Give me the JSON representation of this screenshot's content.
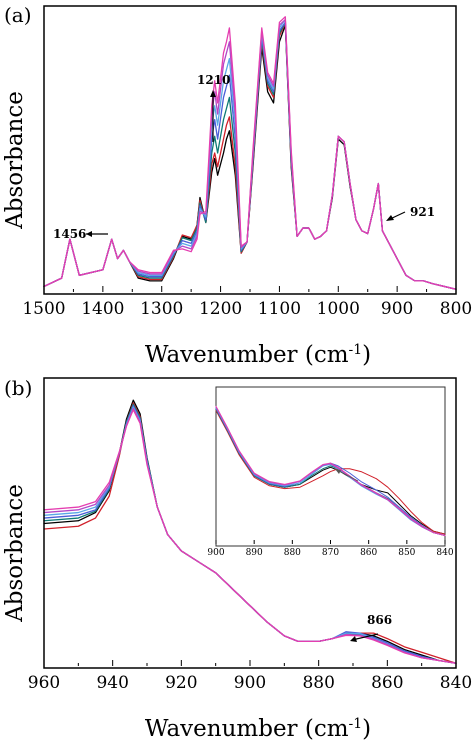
{
  "chart_data": [
    {
      "panel_label": "(a)",
      "type": "line",
      "xlabel": "Wavenumber (cm",
      "xlabel_sup": "-1",
      "xlabel_close": ")",
      "ylabel": "Absorbance",
      "xlim": [
        1500,
        800
      ],
      "x_reversed": true,
      "y_ticks_shown": false,
      "x_ticks": [
        "1500",
        "1400",
        "1300",
        "1200",
        "1100",
        "1000",
        "900",
        "800"
      ],
      "x_tick_values": [
        1500,
        1400,
        1300,
        1200,
        1100,
        1000,
        900,
        800
      ],
      "series_colors": [
        "#000000",
        "#d0202a",
        "#0d7a74",
        "#4a5ed8",
        "#59a7e6",
        "#b248c8",
        "#e43eb0"
      ],
      "x": [
        1500,
        1470,
        1456,
        1440,
        1400,
        1385,
        1375,
        1365,
        1355,
        1340,
        1320,
        1300,
        1280,
        1265,
        1250,
        1240,
        1235,
        1225,
        1215,
        1210,
        1205,
        1195,
        1190,
        1185,
        1175,
        1165,
        1155,
        1145,
        1130,
        1120,
        1110,
        1100,
        1090,
        1080,
        1070,
        1060,
        1050,
        1040,
        1030,
        1020,
        1010,
        1000,
        990,
        980,
        970,
        960,
        950,
        940,
        932,
        925,
        915,
        900,
        885,
        870,
        855,
        840,
        820,
        800
      ],
      "series_shapes": [
        [
          0.02,
          0.05,
          0.19,
          0.06,
          0.08,
          0.19,
          0.12,
          0.15,
          0.11,
          0.05,
          0.04,
          0.04,
          0.12,
          0.2,
          0.19,
          0.24,
          0.34,
          0.25,
          0.43,
          0.48,
          0.42,
          0.5,
          0.55,
          0.58,
          0.42,
          0.14,
          0.18,
          0.45,
          0.88,
          0.72,
          0.68,
          0.9,
          0.96,
          0.45,
          0.2,
          0.23,
          0.23,
          0.19,
          0.2,
          0.22,
          0.34,
          0.55,
          0.53,
          0.38,
          0.26,
          0.22,
          0.21,
          0.3,
          0.39,
          0.22,
          0.18,
          0.12,
          0.06,
          0.04,
          0.04,
          0.03,
          0.02,
          0.01
        ],
        [
          0.02,
          0.05,
          0.19,
          0.06,
          0.08,
          0.19,
          0.12,
          0.15,
          0.11,
          0.055,
          0.045,
          0.045,
          0.125,
          0.205,
          0.195,
          0.24,
          0.33,
          0.25,
          0.46,
          0.5,
          0.45,
          0.55,
          0.6,
          0.63,
          0.45,
          0.14,
          0.18,
          0.46,
          0.9,
          0.74,
          0.7,
          0.92,
          0.97,
          0.46,
          0.2,
          0.23,
          0.23,
          0.19,
          0.2,
          0.22,
          0.35,
          0.56,
          0.54,
          0.39,
          0.26,
          0.22,
          0.21,
          0.3,
          0.39,
          0.22,
          0.18,
          0.12,
          0.06,
          0.04,
          0.04,
          0.03,
          0.02,
          0.01
        ],
        [
          0.02,
          0.05,
          0.19,
          0.06,
          0.08,
          0.19,
          0.12,
          0.15,
          0.11,
          0.06,
          0.05,
          0.05,
          0.13,
          0.195,
          0.185,
          0.23,
          0.32,
          0.25,
          0.5,
          0.56,
          0.5,
          0.62,
          0.66,
          0.7,
          0.5,
          0.145,
          0.18,
          0.47,
          0.91,
          0.75,
          0.71,
          0.93,
          0.97,
          0.47,
          0.2,
          0.23,
          0.23,
          0.19,
          0.2,
          0.22,
          0.35,
          0.56,
          0.54,
          0.39,
          0.26,
          0.22,
          0.21,
          0.3,
          0.39,
          0.22,
          0.18,
          0.12,
          0.06,
          0.04,
          0.04,
          0.03,
          0.02,
          0.01
        ],
        [
          0.02,
          0.05,
          0.19,
          0.06,
          0.08,
          0.19,
          0.12,
          0.15,
          0.11,
          0.065,
          0.055,
          0.055,
          0.135,
          0.185,
          0.175,
          0.22,
          0.31,
          0.26,
          0.55,
          0.62,
          0.55,
          0.7,
          0.74,
          0.78,
          0.55,
          0.15,
          0.18,
          0.48,
          0.92,
          0.76,
          0.72,
          0.94,
          0.97,
          0.48,
          0.2,
          0.23,
          0.23,
          0.19,
          0.2,
          0.22,
          0.35,
          0.56,
          0.54,
          0.39,
          0.26,
          0.22,
          0.21,
          0.3,
          0.39,
          0.22,
          0.18,
          0.12,
          0.06,
          0.04,
          0.04,
          0.03,
          0.02,
          0.01
        ],
        [
          0.02,
          0.05,
          0.19,
          0.06,
          0.08,
          0.19,
          0.12,
          0.15,
          0.11,
          0.07,
          0.06,
          0.06,
          0.14,
          0.175,
          0.165,
          0.21,
          0.3,
          0.27,
          0.6,
          0.67,
          0.6,
          0.76,
          0.8,
          0.84,
          0.6,
          0.155,
          0.18,
          0.49,
          0.93,
          0.77,
          0.73,
          0.95,
          0.98,
          0.49,
          0.2,
          0.23,
          0.23,
          0.19,
          0.2,
          0.22,
          0.35,
          0.56,
          0.54,
          0.39,
          0.26,
          0.22,
          0.21,
          0.3,
          0.39,
          0.22,
          0.18,
          0.12,
          0.06,
          0.04,
          0.04,
          0.03,
          0.02,
          0.01
        ],
        [
          0.02,
          0.05,
          0.19,
          0.06,
          0.08,
          0.19,
          0.12,
          0.15,
          0.11,
          0.075,
          0.065,
          0.065,
          0.145,
          0.165,
          0.155,
          0.2,
          0.29,
          0.28,
          0.64,
          0.72,
          0.64,
          0.82,
          0.86,
          0.9,
          0.64,
          0.16,
          0.18,
          0.5,
          0.94,
          0.78,
          0.74,
          0.96,
          0.98,
          0.5,
          0.2,
          0.23,
          0.23,
          0.19,
          0.2,
          0.22,
          0.35,
          0.56,
          0.54,
          0.39,
          0.26,
          0.22,
          0.21,
          0.3,
          0.39,
          0.22,
          0.18,
          0.12,
          0.06,
          0.04,
          0.04,
          0.03,
          0.02,
          0.01
        ],
        [
          0.02,
          0.05,
          0.19,
          0.06,
          0.08,
          0.19,
          0.12,
          0.15,
          0.11,
          0.08,
          0.07,
          0.07,
          0.15,
          0.155,
          0.145,
          0.19,
          0.28,
          0.29,
          0.67,
          0.76,
          0.68,
          0.86,
          0.9,
          0.95,
          0.68,
          0.165,
          0.18,
          0.51,
          0.95,
          0.79,
          0.75,
          0.97,
          0.99,
          0.51,
          0.2,
          0.23,
          0.23,
          0.19,
          0.2,
          0.22,
          0.35,
          0.56,
          0.54,
          0.39,
          0.26,
          0.22,
          0.21,
          0.3,
          0.39,
          0.22,
          0.18,
          0.12,
          0.06,
          0.04,
          0.04,
          0.03,
          0.02,
          0.01
        ]
      ],
      "annotations": [
        {
          "text": "1456",
          "direction": "left"
        },
        {
          "text": "1210",
          "direction": "up"
        },
        {
          "text": "921",
          "direction": "left"
        }
      ]
    },
    {
      "panel_label": "(b)",
      "type": "line",
      "xlabel": "Wavenumber (cm",
      "xlabel_sup": "-1",
      "xlabel_close": ")",
      "ylabel": "Absorbance",
      "xlim": [
        960,
        840
      ],
      "x_reversed": true,
      "y_ticks_shown": false,
      "x_ticks": [
        "960",
        "940",
        "920",
        "900",
        "880",
        "860",
        "840"
      ],
      "x_tick_values": [
        960,
        940,
        920,
        900,
        880,
        860,
        840
      ],
      "series_colors": [
        "#000000",
        "#d0202a",
        "#0d7a74",
        "#4a5ed8",
        "#59a7e6",
        "#b248c8",
        "#e43eb0"
      ],
      "x": [
        960,
        950,
        945,
        941,
        938,
        936,
        934,
        932,
        930,
        927,
        924,
        920,
        915,
        910,
        905,
        900,
        895,
        890,
        886,
        880,
        876,
        872,
        868,
        864,
        860,
        855,
        850,
        845,
        840
      ],
      "series_shapes": [
        [
          0.52,
          0.53,
          0.56,
          0.64,
          0.78,
          0.9,
          0.97,
          0.92,
          0.76,
          0.58,
          0.48,
          0.42,
          0.38,
          0.34,
          0.28,
          0.22,
          0.16,
          0.11,
          0.09,
          0.09,
          0.1,
          0.12,
          0.12,
          0.11,
          0.09,
          0.06,
          0.04,
          0.02,
          0.01
        ],
        [
          0.5,
          0.51,
          0.54,
          0.62,
          0.77,
          0.89,
          0.96,
          0.91,
          0.75,
          0.58,
          0.48,
          0.42,
          0.38,
          0.34,
          0.28,
          0.22,
          0.16,
          0.11,
          0.09,
          0.09,
          0.1,
          0.115,
          0.12,
          0.12,
          0.1,
          0.07,
          0.05,
          0.03,
          0.01
        ],
        [
          0.53,
          0.54,
          0.565,
          0.645,
          0.78,
          0.89,
          0.955,
          0.905,
          0.755,
          0.58,
          0.48,
          0.42,
          0.38,
          0.34,
          0.28,
          0.22,
          0.16,
          0.11,
          0.09,
          0.09,
          0.1,
          0.12,
          0.115,
          0.1,
          0.08,
          0.055,
          0.035,
          0.02,
          0.01
        ],
        [
          0.54,
          0.55,
          0.57,
          0.65,
          0.78,
          0.885,
          0.95,
          0.9,
          0.75,
          0.58,
          0.48,
          0.42,
          0.38,
          0.34,
          0.28,
          0.22,
          0.16,
          0.11,
          0.09,
          0.09,
          0.1,
          0.125,
          0.12,
          0.105,
          0.085,
          0.055,
          0.035,
          0.02,
          0.01
        ],
        [
          0.55,
          0.56,
          0.58,
          0.655,
          0.78,
          0.88,
          0.945,
          0.895,
          0.745,
          0.58,
          0.48,
          0.42,
          0.38,
          0.34,
          0.28,
          0.22,
          0.16,
          0.11,
          0.09,
          0.09,
          0.1,
          0.12,
          0.118,
          0.1,
          0.08,
          0.05,
          0.03,
          0.02,
          0.01
        ],
        [
          0.56,
          0.57,
          0.59,
          0.66,
          0.78,
          0.875,
          0.94,
          0.89,
          0.74,
          0.58,
          0.48,
          0.42,
          0.38,
          0.34,
          0.28,
          0.22,
          0.16,
          0.11,
          0.09,
          0.09,
          0.1,
          0.115,
          0.112,
          0.098,
          0.078,
          0.05,
          0.03,
          0.02,
          0.01
        ],
        [
          0.57,
          0.58,
          0.6,
          0.67,
          0.785,
          0.875,
          0.935,
          0.885,
          0.735,
          0.58,
          0.48,
          0.42,
          0.38,
          0.34,
          0.28,
          0.22,
          0.16,
          0.11,
          0.09,
          0.09,
          0.1,
          0.112,
          0.11,
          0.095,
          0.075,
          0.048,
          0.03,
          0.02,
          0.01
        ]
      ],
      "annotations": [
        {
          "text": "866",
          "direction": "left"
        }
      ],
      "inset": {
        "xlim": [
          900,
          840
        ],
        "x_reversed": true,
        "x_ticks": [
          "900",
          "890",
          "880",
          "870",
          "860",
          "850",
          "840"
        ],
        "x_tick_values": [
          900,
          890,
          880,
          870,
          860,
          850,
          840
        ],
        "x": [
          900,
          897,
          894,
          890,
          886,
          882,
          878,
          875,
          872,
          870,
          868,
          865,
          862,
          858,
          855,
          852,
          849,
          846,
          843,
          840
        ],
        "series_shapes": [
          [
            0.95,
            0.8,
            0.64,
            0.48,
            0.42,
            0.4,
            0.42,
            0.47,
            0.52,
            0.54,
            0.52,
            0.47,
            0.42,
            0.38,
            0.36,
            0.28,
            0.2,
            0.14,
            0.09,
            0.07
          ],
          [
            0.94,
            0.79,
            0.63,
            0.47,
            0.41,
            0.39,
            0.4,
            0.44,
            0.48,
            0.51,
            0.53,
            0.53,
            0.51,
            0.46,
            0.4,
            0.32,
            0.23,
            0.15,
            0.09,
            0.07
          ],
          [
            0.95,
            0.8,
            0.64,
            0.48,
            0.42,
            0.4,
            0.42,
            0.48,
            0.53,
            0.55,
            0.53,
            0.48,
            0.42,
            0.36,
            0.32,
            0.25,
            0.18,
            0.12,
            0.08,
            0.06
          ],
          [
            0.955,
            0.805,
            0.645,
            0.485,
            0.425,
            0.405,
            0.43,
            0.49,
            0.55,
            0.57,
            0.55,
            0.5,
            0.44,
            0.38,
            0.33,
            0.26,
            0.19,
            0.13,
            0.08,
            0.06
          ],
          [
            0.96,
            0.81,
            0.65,
            0.49,
            0.43,
            0.41,
            0.43,
            0.49,
            0.55,
            0.56,
            0.53,
            0.47,
            0.41,
            0.35,
            0.31,
            0.24,
            0.17,
            0.12,
            0.08,
            0.06
          ],
          [
            0.965,
            0.815,
            0.655,
            0.495,
            0.435,
            0.415,
            0.44,
            0.5,
            0.555,
            0.565,
            0.535,
            0.475,
            0.415,
            0.355,
            0.31,
            0.245,
            0.175,
            0.12,
            0.08,
            0.06
          ],
          [
            0.97,
            0.82,
            0.66,
            0.5,
            0.44,
            0.42,
            0.445,
            0.505,
            0.56,
            0.57,
            0.54,
            0.48,
            0.42,
            0.36,
            0.315,
            0.25,
            0.18,
            0.125,
            0.08,
            0.06
          ]
        ]
      }
    }
  ]
}
